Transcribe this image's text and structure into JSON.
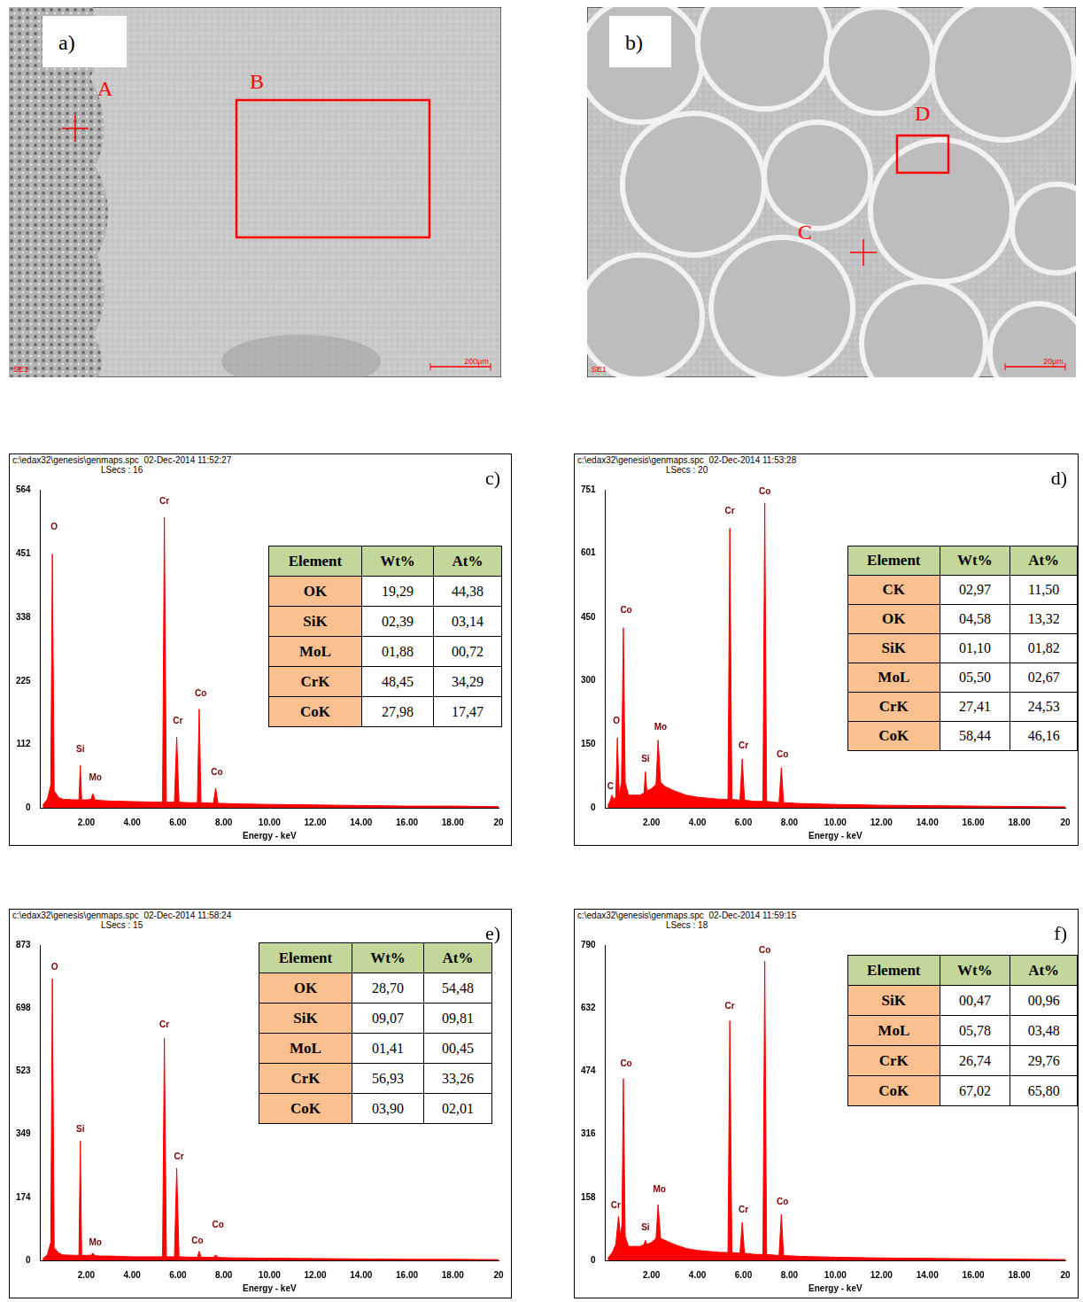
{
  "images": [
    {
      "panel": "a)",
      "detector": "SE1",
      "scale_bar": "200µm",
      "markers": [
        {
          "label": "A",
          "kind": "point"
        },
        {
          "label": "B",
          "kind": "box"
        }
      ]
    },
    {
      "panel": "b)",
      "detector": "SE1",
      "scale_bar": "20µm",
      "markers": [
        {
          "label": "D",
          "kind": "box"
        },
        {
          "label": "C",
          "kind": "point"
        }
      ]
    }
  ],
  "chart_data": [
    {
      "type": "line",
      "panel": "c)",
      "header": "c:\\edax32\\genesis\\genmaps.spc  02-Dec-2014 11:52:27",
      "subheader": "LSecs : 16",
      "x_label": "Energy - keV",
      "color": "#ff0000",
      "xlim": [
        0,
        20
      ],
      "xticks": [
        {
          "value": 2,
          "label": "2.00"
        },
        {
          "value": 4,
          "label": "4.00"
        },
        {
          "value": 6,
          "label": "6.00"
        },
        {
          "value": 8,
          "label": "8.00"
        },
        {
          "value": 10,
          "label": "10.00"
        },
        {
          "value": 12,
          "label": "12.00"
        },
        {
          "value": 14,
          "label": "14.00"
        },
        {
          "value": 16,
          "label": "16.00"
        },
        {
          "value": 18,
          "label": "18.00"
        },
        {
          "value": 20,
          "label": "20"
        }
      ],
      "ylim": [
        0,
        564
      ],
      "yticks": [
        0,
        112,
        225,
        338,
        451,
        564
      ],
      "x": [
        0.1,
        0.3,
        0.45,
        0.52,
        0.6,
        0.8,
        1.0,
        1.5,
        1.68,
        1.74,
        1.8,
        2.0,
        2.2,
        2.29,
        2.38,
        2.6,
        3.0,
        4.0,
        5.0,
        5.33,
        5.41,
        5.5,
        5.85,
        5.95,
        6.05,
        6.5,
        6.85,
        6.93,
        7.01,
        7.55,
        7.65,
        7.75,
        8.5,
        10,
        12,
        14,
        16,
        18,
        20
      ],
      "values": [
        5,
        15,
        40,
        450,
        30,
        18,
        15,
        14,
        14,
        75,
        14,
        14,
        15,
        25,
        14,
        13,
        12,
        11,
        10,
        10,
        515,
        10,
        10,
        125,
        10,
        9,
        9,
        175,
        9,
        8,
        35,
        8,
        7,
        6,
        5,
        4,
        3,
        3,
        2
      ],
      "peak_labels": [
        {
          "text": "O",
          "x": 0.6,
          "y": 490
        },
        {
          "text": "Si",
          "x": 1.74,
          "y": 95
        },
        {
          "text": "Mo",
          "x": 2.4,
          "y": 45
        },
        {
          "text": "Cr",
          "x": 5.41,
          "y": 535
        },
        {
          "text": "Cr",
          "x": 6.0,
          "y": 145
        },
        {
          "text": "Co",
          "x": 7.0,
          "y": 195
        },
        {
          "text": "Co",
          "x": 7.7,
          "y": 55
        }
      ],
      "table": {
        "header": [
          "Element",
          "Wt%",
          "At%"
        ],
        "rows": [
          [
            "OK",
            "19,29",
            "44,38"
          ],
          [
            "SiK",
            "02,39",
            "03,14"
          ],
          [
            "MoL",
            "01,88",
            "00,72"
          ],
          [
            "CrK",
            "48,45",
            "34,29"
          ],
          [
            "CoK",
            "27,98",
            "17,47"
          ]
        ]
      }
    },
    {
      "type": "line",
      "panel": "d)",
      "header": "c:\\edax32\\genesis\\genmaps.spc  02-Dec-2014 11:53:28",
      "subheader": "LSecs : 20",
      "x_label": "Energy - keV",
      "color": "#ff0000",
      "xlim": [
        0,
        20
      ],
      "xticks": [
        {
          "value": 2,
          "label": "2.00"
        },
        {
          "value": 4,
          "label": "4.00"
        },
        {
          "value": 6,
          "label": "6.00"
        },
        {
          "value": 8,
          "label": "8.00"
        },
        {
          "value": 10,
          "label": "10.00"
        },
        {
          "value": 12,
          "label": "12.00"
        },
        {
          "value": 14,
          "label": "14.00"
        },
        {
          "value": 16,
          "label": "16.00"
        },
        {
          "value": 18,
          "label": "18.00"
        },
        {
          "value": 20,
          "label": "20"
        }
      ],
      "ylim": [
        0,
        751
      ],
      "yticks": [
        0,
        150,
        300,
        450,
        601,
        751
      ],
      "x": [
        0.1,
        0.2,
        0.28,
        0.36,
        0.45,
        0.52,
        0.6,
        0.7,
        0.78,
        0.86,
        1.0,
        1.5,
        1.68,
        1.74,
        1.8,
        2.0,
        2.2,
        2.29,
        2.4,
        2.6,
        3.0,
        3.5,
        4.0,
        5.0,
        5.33,
        5.41,
        5.5,
        5.85,
        5.95,
        6.05,
        6.5,
        6.85,
        6.93,
        7.01,
        7.55,
        7.65,
        7.75,
        8.5,
        10,
        12,
        14,
        16,
        18,
        20
      ],
      "values": [
        5,
        15,
        30,
        20,
        25,
        165,
        30,
        60,
        425,
        60,
        30,
        30,
        35,
        85,
        40,
        45,
        55,
        160,
        60,
        50,
        40,
        30,
        25,
        20,
        20,
        660,
        20,
        18,
        115,
        18,
        15,
        15,
        720,
        15,
        12,
        95,
        12,
        10,
        8,
        6,
        5,
        4,
        3,
        2
      ],
      "peak_labels": [
        {
          "text": "C",
          "x": 0.22,
          "y": 40
        },
        {
          "text": "O",
          "x": 0.48,
          "y": 195
        },
        {
          "text": "Co",
          "x": 0.9,
          "y": 455
        },
        {
          "text": "Si",
          "x": 1.74,
          "y": 105
        },
        {
          "text": "Mo",
          "x": 2.4,
          "y": 180
        },
        {
          "text": "Cr",
          "x": 5.41,
          "y": 690
        },
        {
          "text": "Cr",
          "x": 6.0,
          "y": 135
        },
        {
          "text": "Co",
          "x": 6.93,
          "y": 735
        },
        {
          "text": "Co",
          "x": 7.7,
          "y": 115
        }
      ],
      "table": {
        "header": [
          "Element",
          "Wt%",
          "At%"
        ],
        "rows": [
          [
            "CK",
            "02,97",
            "11,50"
          ],
          [
            "OK",
            "04,58",
            "13,32"
          ],
          [
            "SiK",
            "01,10",
            "01,82"
          ],
          [
            "MoL",
            "05,50",
            "02,67"
          ],
          [
            "CrK",
            "27,41",
            "24,53"
          ],
          [
            "CoK",
            "58,44",
            "46,16"
          ]
        ]
      }
    },
    {
      "type": "line",
      "panel": "e)",
      "header": "c:\\edax32\\genesis\\genmaps.spc  02-Dec-2014 11:58:24",
      "subheader": "LSecs : 15",
      "x_label": "Energy - keV",
      "color": "#ff0000",
      "xlim": [
        0,
        20
      ],
      "xticks": [
        {
          "value": 2,
          "label": "2.00"
        },
        {
          "value": 4,
          "label": "4.00"
        },
        {
          "value": 6,
          "label": "6.00"
        },
        {
          "value": 8,
          "label": "8.00"
        },
        {
          "value": 10,
          "label": "10.00"
        },
        {
          "value": 12,
          "label": "12.00"
        },
        {
          "value": 14,
          "label": "14.00"
        },
        {
          "value": 16,
          "label": "16.00"
        },
        {
          "value": 18,
          "label": "18.00"
        },
        {
          "value": 20,
          "label": "20"
        }
      ],
      "ylim": [
        0,
        873
      ],
      "yticks": [
        0,
        174,
        349,
        523,
        698,
        873
      ],
      "x": [
        0.1,
        0.3,
        0.45,
        0.52,
        0.6,
        0.8,
        1.0,
        1.5,
        1.68,
        1.74,
        1.8,
        2.0,
        2.2,
        2.29,
        2.38,
        2.6,
        3.0,
        4.0,
        5.0,
        5.33,
        5.41,
        5.5,
        5.85,
        5.95,
        6.05,
        6.5,
        6.85,
        6.93,
        7.01,
        7.55,
        7.65,
        7.75,
        8.5,
        10,
        12,
        14,
        16,
        18,
        20
      ],
      "values": [
        5,
        15,
        50,
        780,
        35,
        20,
        15,
        14,
        14,
        330,
        14,
        14,
        14,
        20,
        13,
        12,
        12,
        10,
        10,
        10,
        615,
        10,
        10,
        255,
        10,
        9,
        9,
        25,
        9,
        8,
        15,
        8,
        7,
        6,
        5,
        4,
        3,
        3,
        2
      ],
      "peak_labels": [
        {
          "text": "O",
          "x": 0.62,
          "y": 800
        },
        {
          "text": "Si",
          "x": 1.74,
          "y": 350
        },
        {
          "text": "Mo",
          "x": 2.4,
          "y": 35
        },
        {
          "text": "Cr",
          "x": 5.41,
          "y": 640
        },
        {
          "text": "Cr",
          "x": 6.05,
          "y": 275
        },
        {
          "text": "Co",
          "x": 6.85,
          "y": 40
        },
        {
          "text": "Co",
          "x": 7.75,
          "y": 85
        }
      ],
      "table": {
        "header": [
          "Element",
          "Wt%",
          "At%"
        ],
        "rows": [
          [
            "OK",
            "28,70",
            "54,48"
          ],
          [
            "SiK",
            "09,07",
            "09,81"
          ],
          [
            "MoL",
            "01,41",
            "00,45"
          ],
          [
            "CrK",
            "56,93",
            "33,26"
          ],
          [
            "CoK",
            "03,90",
            "02,01"
          ]
        ]
      }
    },
    {
      "type": "line",
      "panel": "f)",
      "header": "c:\\edax32\\genesis\\genmaps.spc  02-Dec-2014 11:59:15",
      "subheader": "LSecs : 18",
      "x_label": "Energy - keV",
      "color": "#ff0000",
      "xlim": [
        0,
        20
      ],
      "xticks": [
        {
          "value": 2,
          "label": "2.00"
        },
        {
          "value": 4,
          "label": "4.00"
        },
        {
          "value": 6,
          "label": "6.00"
        },
        {
          "value": 8,
          "label": "8.00"
        },
        {
          "value": 10,
          "label": "10.00"
        },
        {
          "value": 12,
          "label": "12.00"
        },
        {
          "value": 14,
          "label": "14.00"
        },
        {
          "value": 16,
          "label": "16.00"
        },
        {
          "value": 18,
          "label": "18.00"
        },
        {
          "value": 20,
          "label": "20"
        }
      ],
      "ylim": [
        0,
        790
      ],
      "yticks": [
        0,
        158,
        316,
        474,
        632,
        790
      ],
      "x": [
        0.1,
        0.3,
        0.45,
        0.57,
        0.65,
        0.72,
        0.78,
        0.86,
        1.0,
        1.5,
        1.68,
        1.74,
        1.8,
        2.0,
        2.2,
        2.29,
        2.4,
        2.6,
        3.0,
        3.5,
        4.0,
        5.0,
        5.33,
        5.41,
        5.5,
        5.85,
        5.95,
        6.05,
        6.5,
        6.85,
        6.93,
        7.01,
        7.55,
        7.65,
        7.75,
        8.5,
        10,
        12,
        14,
        16,
        18,
        20
      ],
      "values": [
        5,
        20,
        40,
        110,
        60,
        90,
        455,
        60,
        35,
        35,
        40,
        50,
        40,
        45,
        55,
        140,
        55,
        50,
        40,
        30,
        25,
        20,
        20,
        600,
        20,
        18,
        95,
        18,
        15,
        15,
        750,
        15,
        12,
        115,
        12,
        10,
        8,
        6,
        5,
        4,
        3,
        2
      ],
      "peak_labels": [
        {
          "text": "Cr",
          "x": 0.45,
          "y": 125
        },
        {
          "text": "Co",
          "x": 0.9,
          "y": 480
        },
        {
          "text": "Si",
          "x": 1.74,
          "y": 70
        },
        {
          "text": "Mo",
          "x": 2.35,
          "y": 165
        },
        {
          "text": "Cr",
          "x": 5.41,
          "y": 625
        },
        {
          "text": "Cr",
          "x": 6.0,
          "y": 115
        },
        {
          "text": "Co",
          "x": 6.93,
          "y": 765
        },
        {
          "text": "Co",
          "x": 7.7,
          "y": 135
        }
      ],
      "table": {
        "header": [
          "Element",
          "Wt%",
          "At%"
        ],
        "rows": [
          [
            "SiK",
            "00,47",
            "00,96"
          ],
          [
            "MoL",
            "05,78",
            "03,48"
          ],
          [
            "CrK",
            "26,74",
            "29,76"
          ],
          [
            "CoK",
            "67,02",
            "65,80"
          ]
        ]
      }
    }
  ]
}
